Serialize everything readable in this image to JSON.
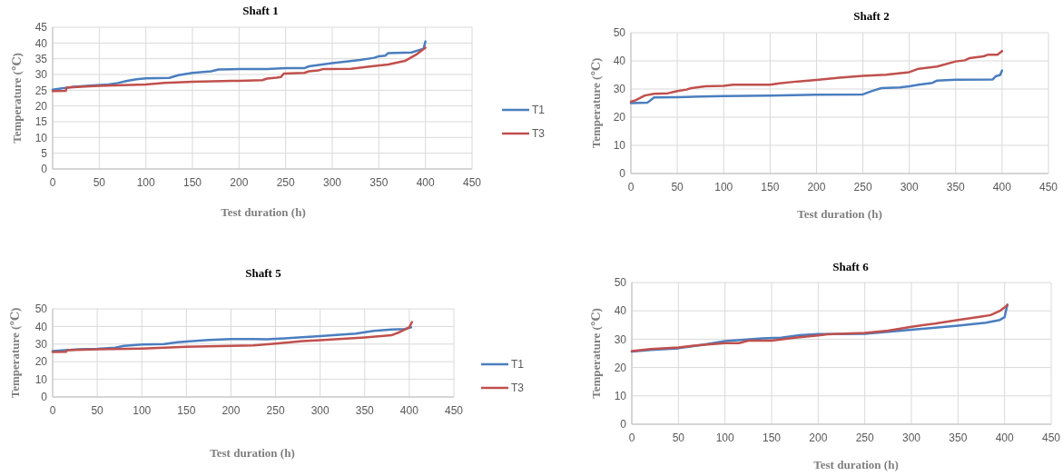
{
  "chart_data": [
    {
      "type": "line",
      "title": "Shaft 1",
      "xlabel": "Test duration (h)",
      "ylabel": "Temperature (℃)",
      "xlim": [
        0,
        450
      ],
      "xticks": [
        0,
        50,
        100,
        150,
        200,
        250,
        300,
        350,
        400,
        450
      ],
      "ylim": [
        0,
        45
      ],
      "yticks": [
        0,
        5,
        10,
        15,
        20,
        25,
        30,
        35,
        40,
        45
      ],
      "grid": true,
      "legend": "right",
      "series": [
        {
          "name": "T1",
          "color": "#4a7ebf",
          "x": [
            0,
            10,
            20,
            40,
            60,
            70,
            80,
            90,
            100,
            125,
            135,
            150,
            170,
            178,
            200,
            230,
            250,
            270,
            275,
            300,
            330,
            345,
            350,
            357,
            360,
            385,
            398,
            400
          ],
          "values": [
            25.2,
            25.6,
            26,
            26.5,
            26.8,
            27.3,
            28,
            28.5,
            28.8,
            28.9,
            29.8,
            30.5,
            31,
            31.6,
            31.7,
            31.7,
            32,
            32,
            32.6,
            33.6,
            34.6,
            35.3,
            35.8,
            36,
            36.8,
            37,
            38.2,
            40.5
          ]
        },
        {
          "name": "T3",
          "color": "#c0504d",
          "x": [
            0,
            14,
            15,
            30,
            50,
            100,
            120,
            150,
            200,
            225,
            230,
            240,
            245,
            248,
            270,
            275,
            285,
            290,
            320,
            340,
            360,
            378,
            390,
            400
          ],
          "values": [
            24.7,
            24.8,
            25.8,
            26.1,
            26.4,
            26.8,
            27.3,
            27.7,
            28,
            28.2,
            28.7,
            29,
            29.2,
            30.3,
            30.5,
            31,
            31.3,
            31.7,
            31.8,
            32.5,
            33.2,
            34.3,
            36.3,
            38.5
          ]
        }
      ]
    },
    {
      "type": "line",
      "title": "Shaft 2",
      "xlabel": "Test duration (h)",
      "ylabel": "Temperature (℃)",
      "xlim": [
        0,
        450
      ],
      "xticks": [
        0,
        50,
        100,
        150,
        200,
        250,
        300,
        350,
        400,
        450
      ],
      "ylim": [
        0,
        50
      ],
      "yticks": [
        0,
        10,
        20,
        30,
        40,
        50
      ],
      "grid": true,
      "legend": false,
      "series": [
        {
          "color": "#4a7ebf",
          "x": [
            0,
            18,
            25,
            50,
            100,
            150,
            200,
            250,
            260,
            270,
            290,
            300,
            310,
            325,
            330,
            350,
            390,
            393,
            398,
            400
          ],
          "values": [
            25,
            25.2,
            27,
            27.1,
            27.5,
            27.7,
            28,
            28.1,
            29.3,
            30.3,
            30.6,
            31,
            31.5,
            32.2,
            33,
            33.3,
            33.4,
            34.5,
            35,
            36.6
          ]
        },
        {
          "color": "#c0504d",
          "x": [
            0,
            5,
            15,
            25,
            40,
            50,
            60,
            65,
            80,
            100,
            110,
            150,
            160,
            180,
            200,
            225,
            250,
            275,
            300,
            310,
            320,
            330,
            350,
            360,
            365,
            380,
            385,
            395,
            400
          ],
          "values": [
            25.5,
            26,
            27.7,
            28.3,
            28.5,
            29.3,
            29.8,
            30.3,
            31,
            31.1,
            31.5,
            31.5,
            32,
            32.7,
            33.2,
            34,
            34.7,
            35.1,
            36,
            37.2,
            37.6,
            38,
            39.8,
            40.2,
            41,
            41.6,
            42.2,
            42.2,
            43.5
          ]
        }
      ]
    },
    {
      "type": "line",
      "title": "Shaft 5",
      "xlabel": "Test duration (h)",
      "ylabel": "Temperature (℃)",
      "xlim": [
        0,
        450
      ],
      "xticks": [
        0,
        50,
        100,
        150,
        200,
        250,
        300,
        350,
        400,
        450
      ],
      "ylim": [
        0,
        50
      ],
      "yticks": [
        0,
        10,
        20,
        30,
        40,
        50
      ],
      "grid": true,
      "legend": "right",
      "series": [
        {
          "name": "T1",
          "color": "#4a7ebf",
          "x": [
            0,
            10,
            30,
            50,
            70,
            80,
            100,
            125,
            140,
            150,
            175,
            200,
            225,
            240,
            260,
            300,
            340,
            360,
            380,
            395,
            402
          ],
          "values": [
            26,
            26.4,
            27,
            27.3,
            28,
            29,
            29.8,
            30,
            31,
            31.5,
            32.3,
            32.8,
            32.8,
            32.7,
            33.2,
            34.5,
            36,
            37.5,
            38.3,
            38.5,
            39.5
          ]
        },
        {
          "name": "T3",
          "color": "#c0504d",
          "x": [
            0,
            15,
            16,
            50,
            100,
            150,
            200,
            225,
            250,
            280,
            300,
            350,
            380,
            390,
            400,
            403
          ],
          "values": [
            25.5,
            25.6,
            26.5,
            27,
            27.5,
            28.5,
            29,
            29.2,
            30.3,
            31.7,
            32.2,
            33.8,
            35,
            37,
            39.5,
            42.5
          ]
        }
      ]
    },
    {
      "type": "line",
      "title": "Shaft 6",
      "xlabel": "Test duration (h)",
      "ylabel": "Temperature (℃)",
      "xlim": [
        0,
        450
      ],
      "xticks": [
        0,
        50,
        100,
        150,
        200,
        250,
        300,
        350,
        400,
        450
      ],
      "ylim": [
        0,
        50
      ],
      "yticks": [
        0,
        10,
        20,
        30,
        40,
        50
      ],
      "grid": true,
      "legend": false,
      "series": [
        {
          "color": "#4a7ebf",
          "x": [
            0,
            20,
            50,
            75,
            100,
            140,
            160,
            180,
            200,
            250,
            300,
            350,
            380,
            395,
            400,
            403
          ],
          "values": [
            25.6,
            26.2,
            26.8,
            28,
            29.3,
            30.3,
            30.5,
            31.4,
            31.8,
            31.9,
            33.3,
            34.8,
            35.8,
            36.8,
            37.8,
            42.2
          ]
        },
        {
          "color": "#c0504d",
          "x": [
            0,
            20,
            50,
            75,
            100,
            115,
            125,
            150,
            175,
            200,
            210,
            250,
            275,
            300,
            325,
            350,
            375,
            385,
            395,
            403
          ],
          "values": [
            25.8,
            26.5,
            27.1,
            28,
            28.6,
            28.6,
            29.5,
            29.5,
            30.5,
            31.3,
            31.7,
            32.2,
            33,
            34.4,
            35.5,
            36.8,
            38,
            38.5,
            40,
            42
          ]
        }
      ]
    }
  ]
}
